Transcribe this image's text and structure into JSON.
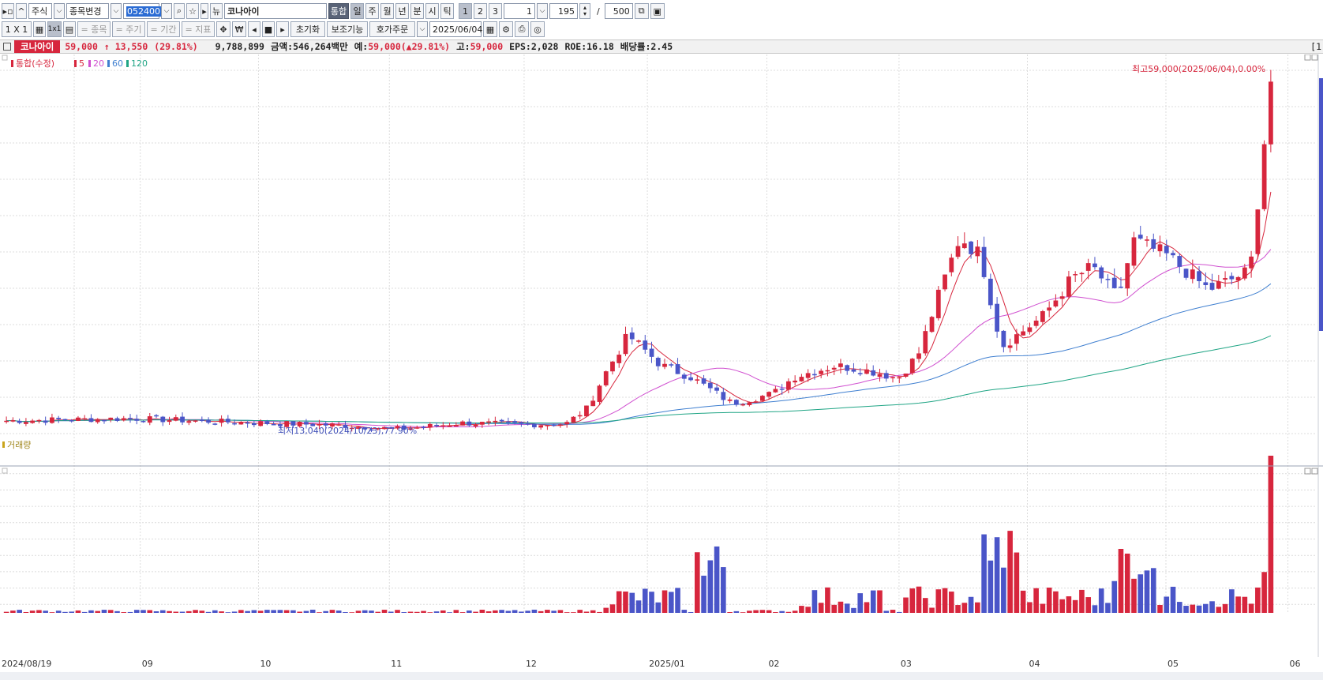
{
  "toolbar1": {
    "items": [
      "주식",
      "종목변경",
      "052400",
      "코나아이",
      "통합",
      "일",
      "주",
      "월",
      "년",
      "분",
      "시",
      "틱",
      "1",
      "2",
      "3",
      "1",
      "195",
      "/",
      "500"
    ]
  },
  "toolbar2": {
    "layout": "1 X 1",
    "layout2": "1x1",
    "filters": [
      "= 종목",
      "= 주기",
      "= 기간",
      "= 지표"
    ],
    "won_label": "₩",
    "reset": "초기화",
    "aux": "보조기능",
    "order": "호가주문",
    "date": "2025/06/04"
  },
  "info": {
    "name": "코나아이",
    "price": "59,000",
    "change": "13,550",
    "rate": "(29.81%)",
    "volume": "9,788,899",
    "amount": "금액:546,264백만",
    "expected_label": "예:",
    "expected": "59,000(▲29.81%)",
    "high_label": "고:",
    "high": "59,000",
    "eps": "EPS:2,028",
    "roe": "ROE:16.18",
    "div": "배당률:2.45",
    "edge": "[1"
  },
  "chart": {
    "legend": [
      {
        "label": "통합(수정)",
        "color": "#d7263d"
      },
      {
        "label": "5",
        "color": "#d7263d"
      },
      {
        "label": "20",
        "color": "#d050d0"
      },
      {
        "label": "60",
        "color": "#3f7fd0"
      },
      {
        "label": "120",
        "color": "#20a585"
      }
    ],
    "high_annotation": "최고59,000(2025/06/04),0.00%",
    "low_annotation": "최저13,040(2024/10/23),77.90%",
    "volume_label": "거래량",
    "x_ticks": [
      {
        "label": "2024/08/19",
        "t": 0.0
      },
      {
        "label": "09",
        "t": 0.052
      },
      {
        "label": "10",
        "t": 0.145
      },
      {
        "label": "11",
        "t": 0.248
      },
      {
        "label": "12",
        "t": 0.354
      },
      {
        "label": "2025/01",
        "t": 0.451
      },
      {
        "label": "02",
        "t": 0.545
      },
      {
        "label": "03",
        "t": 0.649
      },
      {
        "label": "04",
        "t": 0.75
      },
      {
        "label": "05",
        "t": 0.859
      },
      {
        "label": "06",
        "t": 0.955
      }
    ],
    "price_range": [
      12500,
      60500
    ],
    "volume_max": 10000000
  },
  "colors": {
    "up": "#d7263d",
    "down": "#4a55c8",
    "ma5": "#d7263d",
    "ma20": "#d050d0",
    "ma60": "#3f7fd0",
    "ma120": "#20a585"
  }
}
